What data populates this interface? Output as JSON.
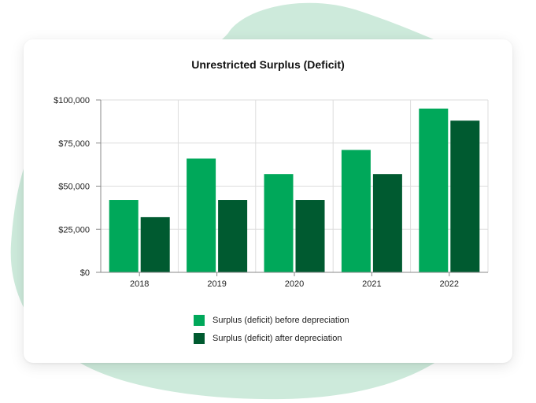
{
  "colors": {
    "before": "#00a85a",
    "after": "#005a30",
    "blob": "#cdeadb",
    "grid": "#dddddd",
    "axis": "#888888"
  },
  "chart_data": {
    "type": "bar",
    "title": "Unrestricted Surplus (Deficit)",
    "categories": [
      "2018",
      "2019",
      "2020",
      "2021",
      "2022"
    ],
    "series": [
      {
        "name": "Surplus (deficit) before depreciation",
        "values": [
          42000,
          66000,
          57000,
          71000,
          95000
        ]
      },
      {
        "name": "Surplus (deficit) after depreciation",
        "values": [
          32000,
          42000,
          42000,
          57000,
          88000
        ]
      }
    ],
    "ylim": [
      0,
      100000
    ],
    "yticks": [
      0,
      25000,
      50000,
      75000,
      100000
    ],
    "ytick_labels": [
      "$0",
      "$25,000",
      "$50,000",
      "$75,000",
      "$100,000"
    ],
    "xlabel": "",
    "ylabel": "",
    "grid": true,
    "legend_position": "bottom"
  }
}
